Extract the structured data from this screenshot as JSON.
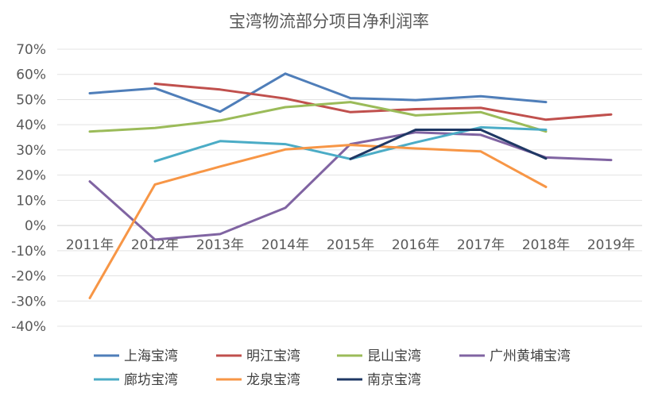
{
  "chart_data": {
    "type": "line",
    "title": "宝湾物流部分项目净利润率",
    "xlabel": "",
    "ylabel": "",
    "categories": [
      "2011年",
      "2012年",
      "2013年",
      "2014年",
      "2015年",
      "2016年",
      "2017年",
      "2018年",
      "2019年"
    ],
    "ylim": [
      -40,
      70
    ],
    "yticks": [
      -40,
      -30,
      -20,
      -10,
      0,
      10,
      20,
      30,
      40,
      50,
      60,
      70
    ],
    "ytick_labels": [
      "-40%",
      "-30%",
      "-20%",
      "-10%",
      "0%",
      "10%",
      "20%",
      "30%",
      "40%",
      "50%",
      "60%",
      "70%"
    ],
    "grid": true,
    "legend_position": "bottom",
    "series": [
      {
        "name": "上海宝湾",
        "color": "#4F7EB9",
        "values": [
          52.5,
          54.5,
          45.2,
          60.3,
          50.6,
          49.8,
          51.3,
          49.0,
          null
        ]
      },
      {
        "name": "明江宝湾",
        "color": "#C0504D",
        "values": [
          null,
          56.3,
          54.0,
          50.4,
          45.0,
          46.2,
          46.7,
          42.0,
          44.1
        ]
      },
      {
        "name": "昆山宝湾",
        "color": "#9BBB59",
        "values": [
          37.3,
          38.7,
          41.7,
          47.0,
          49.0,
          43.7,
          45.0,
          37.3,
          null
        ]
      },
      {
        "name": "广州黄埔宝湾",
        "color": "#8064A2",
        "values": [
          17.5,
          -5.6,
          -3.4,
          7.0,
          32.3,
          37.0,
          36.0,
          27.0,
          26.0
        ]
      },
      {
        "name": "廊坊宝湾",
        "color": "#4BACC6",
        "values": [
          null,
          25.5,
          33.5,
          32.3,
          26.4,
          33.0,
          39.0,
          38.0,
          null
        ]
      },
      {
        "name": "龙泉宝湾",
        "color": "#F79646",
        "values": [
          -28.8,
          16.3,
          23.4,
          30.2,
          32.0,
          30.6,
          29.4,
          15.3,
          null
        ]
      },
      {
        "name": "南京宝湾",
        "color": "#1F3864",
        "values": [
          null,
          null,
          null,
          null,
          26.4,
          38.0,
          38.0,
          26.6,
          null
        ]
      }
    ]
  }
}
